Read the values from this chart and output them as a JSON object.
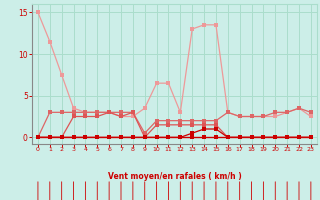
{
  "bg_color": "#cceee8",
  "grid_color": "#aaddcc",
  "line_color_dark": "#cc0000",
  "line_color_mid": "#dd6666",
  "line_color_light": "#ee9999",
  "xlabel": "Vent moyen/en rafales ( km/h )",
  "xlabel_color": "#cc0000",
  "tick_color": "#cc0000",
  "xlim": [
    -0.5,
    23.5
  ],
  "ylim": [
    -0.8,
    16.0
  ],
  "yticks": [
    0,
    5,
    10,
    15
  ],
  "xticks": [
    0,
    1,
    2,
    3,
    4,
    5,
    6,
    7,
    8,
    9,
    10,
    11,
    12,
    13,
    14,
    15,
    16,
    17,
    18,
    19,
    20,
    21,
    22,
    23
  ],
  "s1_x": [
    0,
    1,
    2,
    3,
    4,
    5,
    6,
    7,
    8,
    9,
    10,
    11,
    12,
    13,
    14,
    15,
    16,
    17,
    18,
    19,
    20,
    21,
    22,
    23
  ],
  "s1_y": [
    15.0,
    11.5,
    7.5,
    3.5,
    3.0,
    3.0,
    3.0,
    2.5,
    2.5,
    3.5,
    6.5,
    6.5,
    3.0,
    13.0,
    13.5,
    13.5,
    3.0,
    2.5,
    2.5,
    2.5,
    2.5,
    3.0,
    3.5,
    2.5
  ],
  "s2_x": [
    0,
    1,
    2,
    3,
    4,
    5,
    6,
    7,
    8,
    9,
    10,
    11,
    12,
    13,
    14,
    15,
    16,
    17,
    18,
    19,
    20,
    21,
    22,
    23
  ],
  "s2_y": [
    0.0,
    3.0,
    3.0,
    3.0,
    3.0,
    3.0,
    3.0,
    3.0,
    3.0,
    0.5,
    2.0,
    2.0,
    2.0,
    2.0,
    2.0,
    2.0,
    3.0,
    2.5,
    2.5,
    2.5,
    3.0,
    3.0,
    3.5,
    3.0
  ],
  "s3_x": [
    0,
    1,
    2,
    3,
    4,
    5,
    6,
    7,
    8,
    9,
    10,
    11,
    12,
    13,
    14,
    15,
    16,
    17,
    18,
    19,
    20,
    21,
    22,
    23
  ],
  "s3_y": [
    0.0,
    0.0,
    0.0,
    2.5,
    2.5,
    2.5,
    3.0,
    2.5,
    3.0,
    0.0,
    1.5,
    1.5,
    1.5,
    1.5,
    1.5,
    1.5,
    0.0,
    0.0,
    0.0,
    0.0,
    0.0,
    0.0,
    0.0,
    0.0
  ],
  "s4_x": [
    0,
    1,
    2,
    3,
    4,
    5,
    6,
    7,
    8,
    9,
    10,
    11,
    12,
    13,
    14,
    15,
    16,
    17,
    18,
    19,
    20,
    21,
    22,
    23
  ],
  "s4_y": [
    0.0,
    0.0,
    0.0,
    0.0,
    0.0,
    0.0,
    0.0,
    0.0,
    0.0,
    0.0,
    0.0,
    0.0,
    0.0,
    0.5,
    1.0,
    1.0,
    0.0,
    0.0,
    0.0,
    0.0,
    0.0,
    0.0,
    0.0,
    0.0
  ],
  "s5_x": [
    0,
    1,
    2,
    3,
    4,
    5,
    6,
    7,
    8,
    9,
    10,
    11,
    12,
    13,
    14,
    15,
    16,
    17,
    18,
    19,
    20,
    21,
    22,
    23
  ],
  "s5_y": [
    0.0,
    0.0,
    0.0,
    0.0,
    0.0,
    0.0,
    0.0,
    0.0,
    0.0,
    0.0,
    0.0,
    0.0,
    0.0,
    0.0,
    0.0,
    0.0,
    0.0,
    0.0,
    0.0,
    0.0,
    0.0,
    0.0,
    0.0,
    0.0
  ]
}
